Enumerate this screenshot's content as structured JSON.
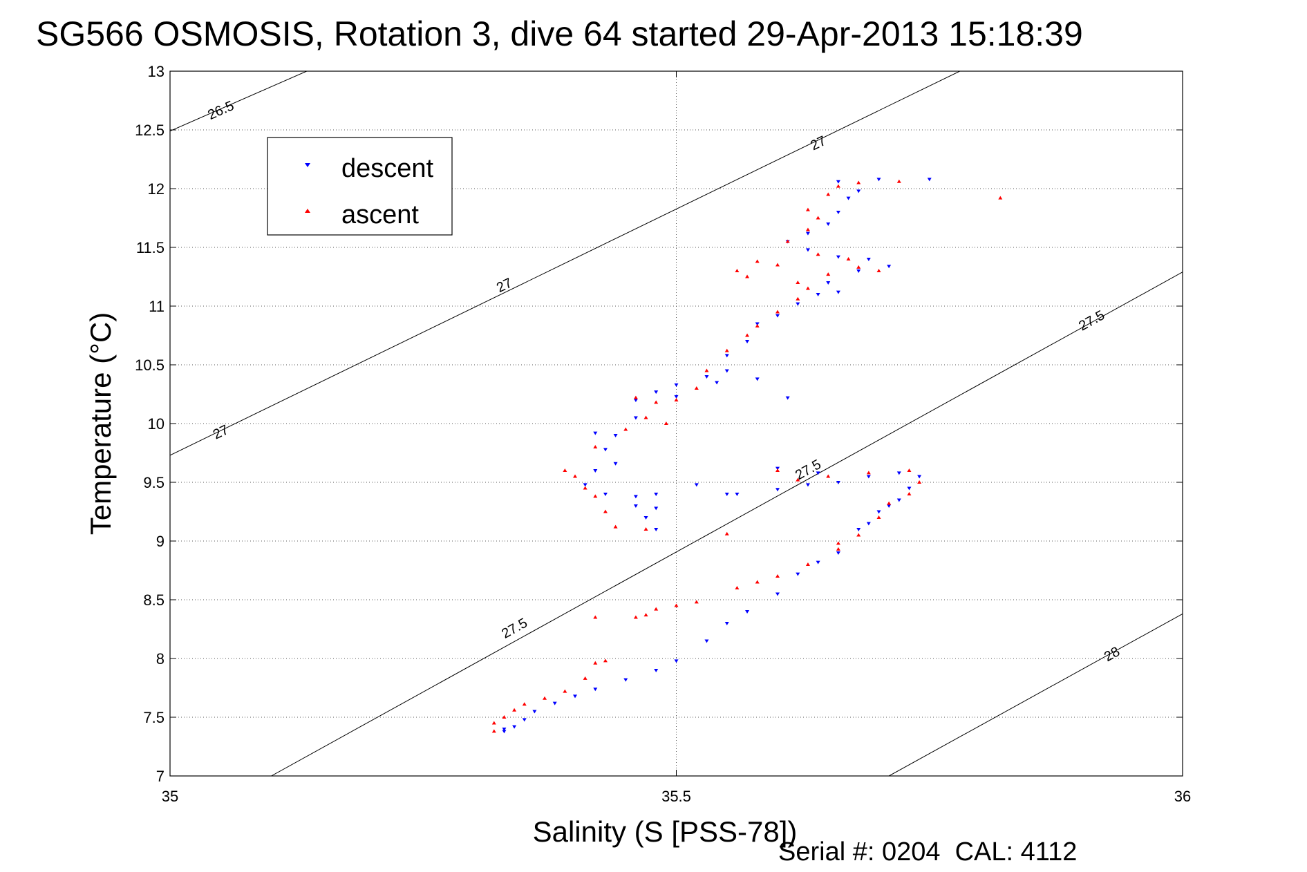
{
  "chart_data": {
    "type": "scatter",
    "title": "SG566 OSMOSIS, Rotation 3, dive 64 started 29-Apr-2013 15:18:39",
    "xlabel": "Salinity (S [PSS-78])",
    "ylabel": "Temperature (°C)",
    "xlim": [
      35,
      36
    ],
    "ylim": [
      7,
      13
    ],
    "x_ticks": [
      35,
      35.5,
      36
    ],
    "x_tick_labels": [
      "35",
      "35.5",
      "36"
    ],
    "y_ticks": [
      7,
      7.5,
      8,
      8.5,
      9,
      9.5,
      10,
      10.5,
      11,
      11.5,
      12,
      12.5,
      13
    ],
    "y_tick_labels": [
      "7",
      "7.5",
      "8",
      "8.5",
      "9",
      "9.5",
      "10",
      "10.5",
      "11",
      "11.5",
      "12",
      "12.5",
      "13"
    ],
    "grid": true,
    "legend_position": "top-left",
    "density_contours": [
      {
        "label": "26.5",
        "points": [
          [
            35,
            12.49
          ],
          [
            35.135,
            13.0
          ]
        ],
        "labels_at": [
          [
            35.05,
            12.67
          ]
        ]
      },
      {
        "label": "27",
        "points": [
          [
            35,
            9.73
          ],
          [
            35.78,
            13.0
          ]
        ],
        "labels_at": [
          [
            35.05,
            9.93
          ],
          [
            35.33,
            11.18
          ],
          [
            35.64,
            12.39
          ]
        ]
      },
      {
        "label": "27.5",
        "points": [
          [
            35.1,
            7.0
          ],
          [
            36.0,
            11.29
          ]
        ],
        "labels_at": [
          [
            35.34,
            8.26
          ],
          [
            35.63,
            9.61
          ],
          [
            35.91,
            10.88
          ]
        ]
      },
      {
        "label": "28",
        "points": [
          [
            35.71,
            7.0
          ],
          [
            36.0,
            8.38
          ]
        ],
        "labels_at": [
          [
            35.93,
            8.04
          ]
        ]
      }
    ],
    "series": [
      {
        "name": "descent",
        "color": "#0000ff",
        "marker": "triangle-down",
        "points": [
          [
            35.33,
            7.38
          ],
          [
            35.33,
            7.4
          ],
          [
            35.34,
            7.42
          ],
          [
            35.35,
            7.48
          ],
          [
            35.36,
            7.55
          ],
          [
            35.38,
            7.62
          ],
          [
            35.4,
            7.68
          ],
          [
            35.42,
            7.74
          ],
          [
            35.45,
            7.82
          ],
          [
            35.48,
            7.9
          ],
          [
            35.5,
            7.98
          ],
          [
            35.53,
            8.15
          ],
          [
            35.55,
            8.3
          ],
          [
            35.57,
            8.4
          ],
          [
            35.6,
            8.55
          ],
          [
            35.62,
            8.72
          ],
          [
            35.64,
            8.82
          ],
          [
            35.66,
            8.9
          ],
          [
            35.68,
            9.1
          ],
          [
            35.69,
            9.15
          ],
          [
            35.7,
            9.25
          ],
          [
            35.71,
            9.3
          ],
          [
            35.72,
            9.35
          ],
          [
            35.73,
            9.45
          ],
          [
            35.74,
            9.55
          ],
          [
            35.72,
            9.58
          ],
          [
            35.69,
            9.55
          ],
          [
            35.66,
            9.5
          ],
          [
            35.63,
            9.48
          ],
          [
            35.6,
            9.44
          ],
          [
            35.56,
            9.4
          ],
          [
            35.48,
            9.4
          ],
          [
            35.46,
            9.3
          ],
          [
            35.47,
            9.2
          ],
          [
            35.48,
            9.28
          ],
          [
            35.46,
            9.38
          ],
          [
            35.43,
            9.4
          ],
          [
            35.41,
            9.48
          ],
          [
            35.42,
            9.6
          ],
          [
            35.44,
            9.66
          ],
          [
            35.43,
            9.78
          ],
          [
            35.42,
            9.92
          ],
          [
            35.44,
            9.9
          ],
          [
            35.46,
            10.05
          ],
          [
            35.46,
            10.2
          ],
          [
            35.48,
            10.27
          ],
          [
            35.5,
            10.33
          ],
          [
            35.53,
            10.4
          ],
          [
            35.55,
            10.45
          ],
          [
            35.55,
            10.58
          ],
          [
            35.57,
            10.7
          ],
          [
            35.58,
            10.85
          ],
          [
            35.6,
            10.92
          ],
          [
            35.62,
            11.02
          ],
          [
            35.64,
            11.1
          ],
          [
            35.66,
            11.12
          ],
          [
            35.65,
            11.2
          ],
          [
            35.68,
            11.3
          ],
          [
            35.71,
            11.34
          ],
          [
            35.69,
            11.4
          ],
          [
            35.66,
            11.42
          ],
          [
            35.63,
            11.48
          ],
          [
            35.61,
            11.55
          ],
          [
            35.63,
            11.62
          ],
          [
            35.65,
            11.7
          ],
          [
            35.66,
            11.8
          ],
          [
            35.67,
            11.92
          ],
          [
            35.68,
            11.98
          ],
          [
            35.66,
            12.06
          ],
          [
            35.7,
            12.08
          ],
          [
            35.75,
            12.08
          ],
          [
            35.54,
            10.35
          ],
          [
            35.58,
            10.38
          ],
          [
            35.61,
            10.22
          ],
          [
            35.5,
            10.23
          ],
          [
            35.48,
            9.1
          ],
          [
            35.52,
            9.48
          ],
          [
            35.55,
            9.4
          ],
          [
            35.6,
            9.62
          ],
          [
            35.64,
            9.58
          ]
        ]
      },
      {
        "name": "ascent",
        "color": "#ff0000",
        "marker": "triangle-up",
        "points": [
          [
            35.32,
            7.38
          ],
          [
            35.32,
            7.45
          ],
          [
            35.33,
            7.5
          ],
          [
            35.34,
            7.56
          ],
          [
            35.35,
            7.61
          ],
          [
            35.37,
            7.66
          ],
          [
            35.39,
            7.72
          ],
          [
            35.41,
            7.83
          ],
          [
            35.42,
            7.96
          ],
          [
            35.43,
            7.98
          ],
          [
            35.46,
            8.35
          ],
          [
            35.48,
            8.42
          ],
          [
            35.52,
            8.48
          ],
          [
            35.56,
            8.6
          ],
          [
            35.58,
            8.65
          ],
          [
            35.6,
            8.7
          ],
          [
            35.63,
            8.8
          ],
          [
            35.66,
            8.93
          ],
          [
            35.68,
            9.05
          ],
          [
            35.7,
            9.2
          ],
          [
            35.71,
            9.32
          ],
          [
            35.73,
            9.4
          ],
          [
            35.74,
            9.5
          ],
          [
            35.73,
            9.6
          ],
          [
            35.69,
            9.58
          ],
          [
            35.65,
            9.55
          ],
          [
            35.62,
            9.52
          ],
          [
            35.47,
            9.1
          ],
          [
            35.44,
            9.12
          ],
          [
            35.43,
            9.25
          ],
          [
            35.42,
            9.38
          ],
          [
            35.41,
            9.45
          ],
          [
            35.4,
            9.55
          ],
          [
            35.39,
            9.6
          ],
          [
            35.42,
            9.8
          ],
          [
            35.45,
            9.95
          ],
          [
            35.47,
            10.05
          ],
          [
            35.46,
            10.22
          ],
          [
            35.48,
            10.18
          ],
          [
            35.5,
            10.2
          ],
          [
            35.52,
            10.3
          ],
          [
            35.53,
            10.45
          ],
          [
            35.55,
            10.62
          ],
          [
            35.57,
            10.75
          ],
          [
            35.58,
            10.83
          ],
          [
            35.6,
            10.95
          ],
          [
            35.62,
            11.06
          ],
          [
            35.63,
            11.15
          ],
          [
            35.62,
            11.2
          ],
          [
            35.65,
            11.27
          ],
          [
            35.68,
            11.33
          ],
          [
            35.7,
            11.3
          ],
          [
            35.67,
            11.4
          ],
          [
            35.64,
            11.44
          ],
          [
            35.6,
            11.35
          ],
          [
            35.57,
            11.25
          ],
          [
            35.56,
            11.3
          ],
          [
            35.58,
            11.38
          ],
          [
            35.61,
            11.55
          ],
          [
            35.63,
            11.65
          ],
          [
            35.64,
            11.75
          ],
          [
            35.63,
            11.82
          ],
          [
            35.65,
            11.95
          ],
          [
            35.66,
            12.02
          ],
          [
            35.68,
            12.05
          ],
          [
            35.72,
            12.06
          ],
          [
            35.82,
            11.92
          ],
          [
            35.49,
            10.0
          ],
          [
            35.55,
            9.06
          ],
          [
            35.6,
            9.6
          ],
          [
            35.66,
            8.98
          ],
          [
            35.42,
            8.35
          ],
          [
            35.47,
            8.37
          ],
          [
            35.5,
            8.45
          ]
        ]
      }
    ]
  },
  "footer": {
    "serial_text": "Serial #: 0204  CAL: 4112"
  }
}
